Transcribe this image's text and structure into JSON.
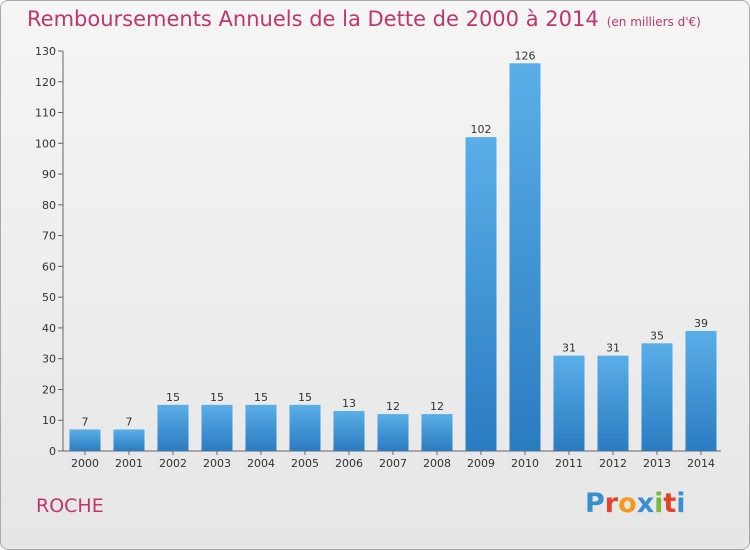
{
  "title": "Remboursements Annuels de la Dette de 2000 à 2014",
  "unit": "(en milliers d'€)",
  "commune": "ROCHE",
  "logo": {
    "letters": [
      "P",
      "r",
      "o",
      "x",
      "i",
      "t",
      "i"
    ],
    "colors": [
      "#3a8fd0",
      "#e8412b",
      "#f39a1e",
      "#3a8fd0",
      "#79b83a",
      "#e8412b",
      "#3a8fd0"
    ]
  },
  "chart_data": {
    "type": "bar",
    "categories": [
      "2000",
      "2001",
      "2002",
      "2003",
      "2004",
      "2005",
      "2006",
      "2007",
      "2008",
      "2009",
      "2010",
      "2011",
      "2012",
      "2013",
      "2014"
    ],
    "values": [
      7,
      7,
      15,
      15,
      15,
      15,
      13,
      12,
      12,
      102,
      126,
      31,
      31,
      35,
      39
    ],
    "ylim": [
      0,
      130
    ],
    "yticks": [
      0,
      10,
      20,
      30,
      40,
      50,
      60,
      70,
      80,
      90,
      100,
      110,
      120,
      130
    ],
    "grid": false,
    "bar_color": "#3a8fd0"
  }
}
